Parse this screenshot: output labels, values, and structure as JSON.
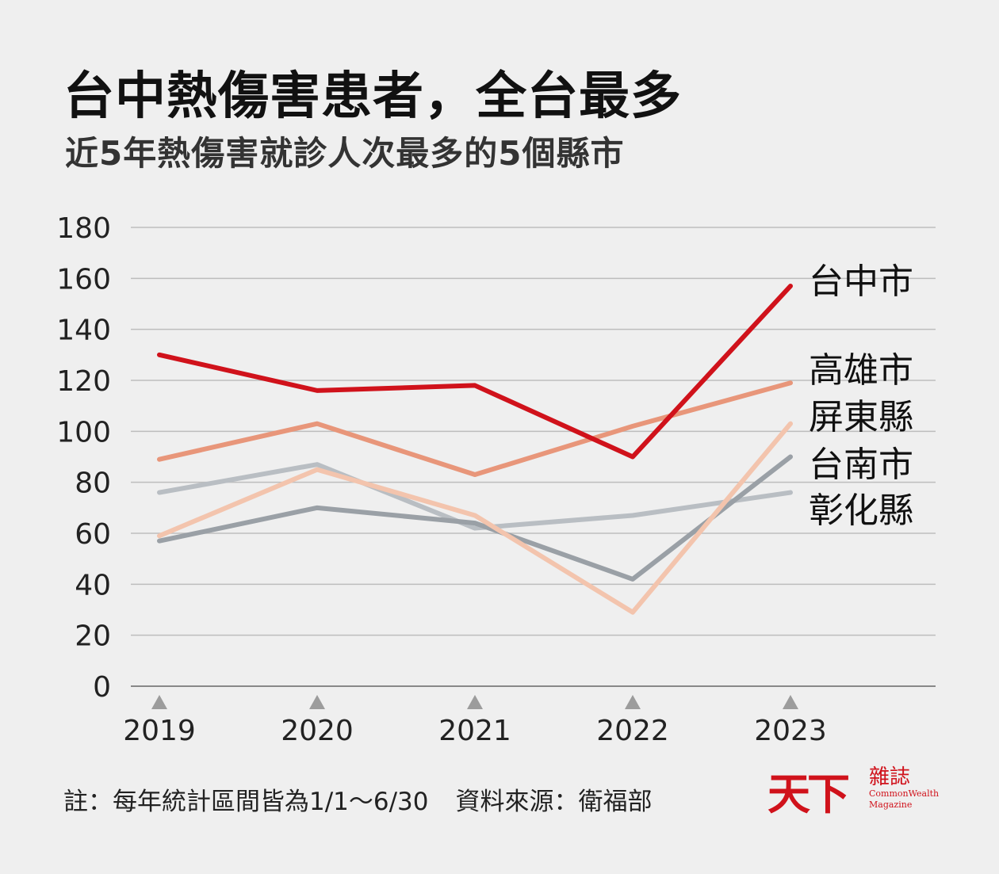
{
  "header": {
    "title": "台中熱傷害患者，全台最多",
    "subtitle": "近5年熱傷害就診人次最多的5個縣市"
  },
  "footer": {
    "note": "註：每年統計區間皆為1/1～6/30",
    "source": "資料來源：衛福部"
  },
  "logo": {
    "brand": "天下",
    "mag": "雜誌",
    "en_line1": "CommonWealth",
    "en_line2": "Magazine"
  },
  "chart_data": {
    "type": "line",
    "x": [
      "2019",
      "2020",
      "2021",
      "2022",
      "2023"
    ],
    "ylim": [
      0,
      180
    ],
    "yticks": [
      0,
      20,
      40,
      60,
      80,
      100,
      120,
      140,
      160,
      180
    ],
    "grid": true,
    "legend": "right",
    "series": [
      {
        "name": "台中市",
        "color": "#d0121b",
        "values": [
          130,
          116,
          118,
          90,
          157
        ]
      },
      {
        "name": "高雄市",
        "color": "#e8967a",
        "values": [
          89,
          103,
          83,
          102,
          119
        ]
      },
      {
        "name": "屏東縣",
        "color": "#f3c4ad",
        "values": [
          59,
          85,
          67,
          29,
          103
        ]
      },
      {
        "name": "台南市",
        "color": "#9aa0a6",
        "values": [
          57,
          70,
          64,
          42,
          90
        ]
      },
      {
        "name": "彰化縣",
        "color": "#b9bec3",
        "values": [
          76,
          87,
          62,
          67,
          76
        ]
      }
    ]
  }
}
